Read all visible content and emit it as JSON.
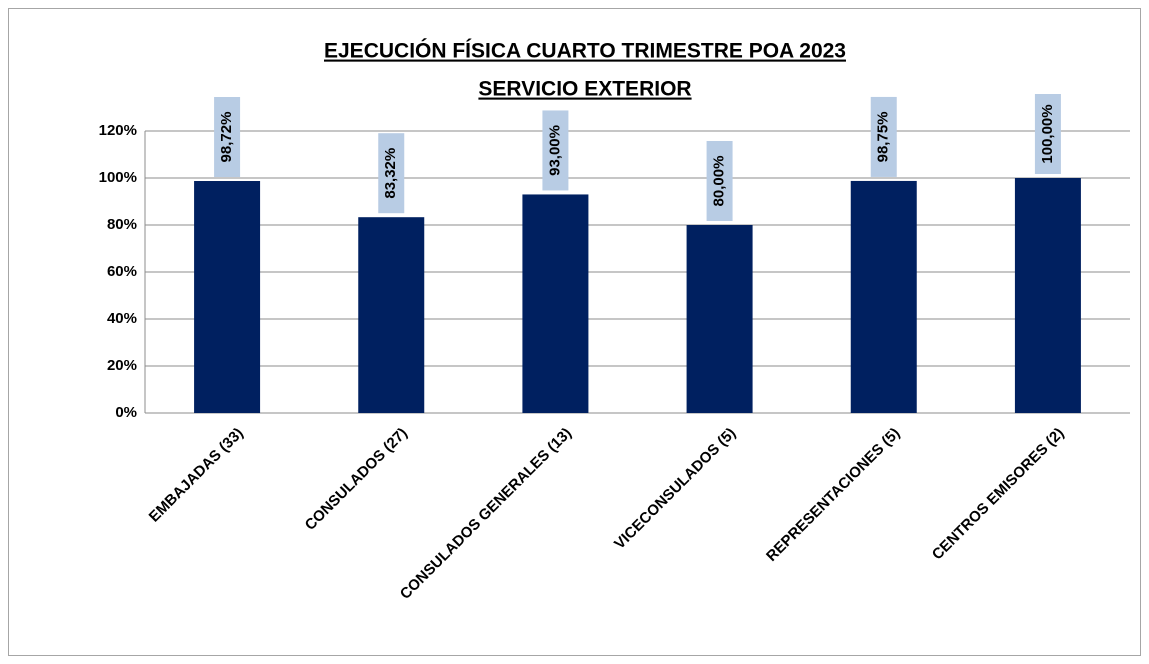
{
  "chart_data": {
    "type": "bar",
    "title": "EJECUCIÓN FÍSICA CUARTO TRIMESTRE POA 2023",
    "subtitle": "SERVICIO EXTERIOR",
    "categories": [
      "EMBAJADAS (33)",
      "CONSULADOS (27)",
      "CONSULADOS GENERALES (13)",
      "VICECONSULADOS (5)",
      "REPRESENTACIONES (5)",
      "CENTROS EMISORES (2)"
    ],
    "values": [
      98.72,
      83.32,
      93,
      80,
      98.75,
      100
    ],
    "value_labels": [
      "98,72%",
      "83,32%",
      "93,00%",
      "80,00%",
      "98,75%",
      "100,00%"
    ],
    "color": "#002060",
    "ylim": [
      0,
      120
    ],
    "yticks": [
      {
        "value": 0,
        "label": "0%"
      },
      {
        "value": 20,
        "label": "20%"
      },
      {
        "value": 40,
        "label": "40%"
      },
      {
        "value": 60,
        "label": "60%"
      },
      {
        "value": 80,
        "label": "80%"
      },
      {
        "value": 100,
        "label": "100%"
      },
      {
        "value": 120,
        "label": "120%"
      }
    ],
    "grid": true
  }
}
